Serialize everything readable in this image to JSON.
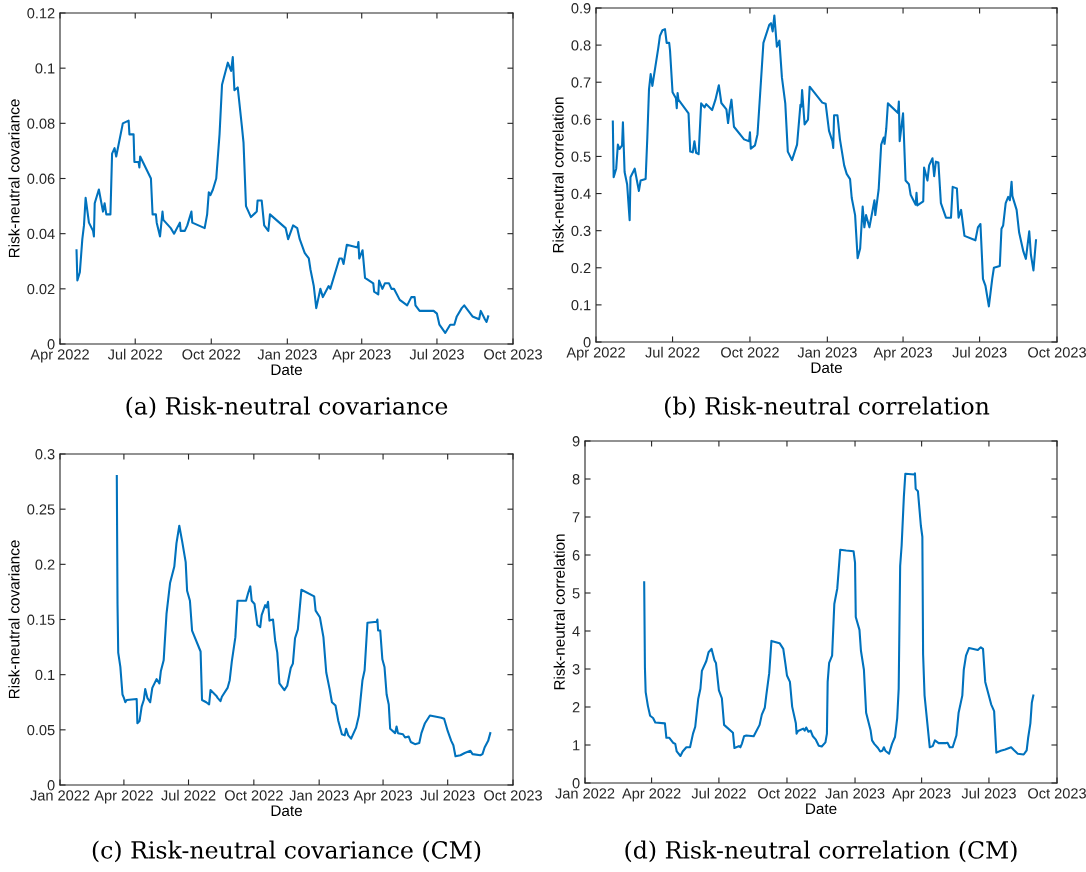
{
  "chart_data": [
    {
      "type": "line",
      "xlabel": "Date",
      "ylabel": "Risk-neutral covariance",
      "annotations": [
        "(a) Risk-neutral covariance"
      ],
      "xlim": [
        "2022-04-01",
        "2023-10-01"
      ],
      "ylim": [
        0,
        0.12
      ],
      "yticks": [
        0,
        0.02,
        0.04,
        0.06,
        0.08,
        0.1,
        0.12
      ],
      "xticks": [
        {
          "value": "2022-04-01",
          "label": "Apr 2022"
        },
        {
          "value": "2022-07-01",
          "label": "Jul 2022"
        },
        {
          "value": "2022-10-01",
          "label": "Oct 2022"
        },
        {
          "value": "2023-01-01",
          "label": "Jan 2023"
        },
        {
          "value": "2023-04-01",
          "label": "Apr 2023"
        },
        {
          "value": "2023-07-01",
          "label": "Jul 2023"
        },
        {
          "value": "2023-10-01",
          "label": "Oct 2023"
        }
      ],
      "x": [
        "2022-04-21",
        "2022-04-22",
        "2022-04-25",
        "2022-04-28",
        "2022-04-30",
        "2022-05-02",
        "2022-05-06",
        "2022-05-11",
        "2022-05-12",
        "2022-05-13",
        "2022-05-18",
        "2022-05-23",
        "2022-05-25",
        "2022-05-27",
        "2022-06-01",
        "2022-06-03",
        "2022-06-06",
        "2022-06-08",
        "2022-06-16",
        "2022-06-23",
        "2022-06-24",
        "2022-06-29",
        "2022-06-30",
        "2022-07-05",
        "2022-07-06",
        "2022-07-07",
        "2022-07-20",
        "2022-07-22",
        "2022-07-26",
        "2022-07-27",
        "2022-07-31",
        "2022-08-03",
        "2022-08-04",
        "2022-08-13",
        "2022-08-17",
        "2022-08-24",
        "2022-08-25",
        "2022-08-30",
        "2022-09-02",
        "2022-09-07",
        "2022-09-08",
        "2022-09-23",
        "2022-09-26",
        "2022-09-28",
        "2022-09-30",
        "2022-10-03",
        "2022-10-07",
        "2022-10-11",
        "2022-10-14",
        "2022-10-21",
        "2022-10-25",
        "2022-10-27",
        "2022-10-29",
        "2022-11-02",
        "2022-11-07",
        "2022-11-09",
        "2022-11-12",
        "2022-11-18",
        "2022-11-25",
        "2022-11-26",
        "2022-12-01",
        "2022-12-04",
        "2022-12-09",
        "2022-12-11",
        "2022-12-30",
        "2023-01-02",
        "2023-01-08",
        "2023-01-13",
        "2023-01-16",
        "2023-01-22",
        "2023-01-27",
        "2023-01-29",
        "2023-02-02",
        "2023-02-05",
        "2023-02-10",
        "2023-02-13",
        "2023-02-20",
        "2023-02-22",
        "2023-03-05",
        "2023-03-08",
        "2023-03-10",
        "2023-03-14",
        "2023-03-27",
        "2023-03-28",
        "2023-03-29",
        "2023-04-02",
        "2023-04-05",
        "2023-04-10",
        "2023-04-15",
        "2023-04-16",
        "2023-04-21",
        "2023-04-22",
        "2023-04-26",
        "2023-04-29",
        "2023-05-04",
        "2023-05-07",
        "2023-05-10",
        "2023-05-17",
        "2023-05-26",
        "2023-05-31",
        "2023-06-04",
        "2023-06-05",
        "2023-06-10",
        "2023-06-27",
        "2023-07-01",
        "2023-07-04",
        "2023-07-11",
        "2023-07-17",
        "2023-07-22",
        "2023-07-25",
        "2023-07-31",
        "2023-08-03",
        "2023-08-08",
        "2023-08-13",
        "2023-08-21",
        "2023-08-23",
        "2023-08-28",
        "2023-08-30",
        "2023-09-01"
      ],
      "series": [
        {
          "color": "#0072bd",
          "values": [
            0.034,
            0.023,
            0.026,
            0.038,
            0.043,
            0.053,
            0.044,
            0.041,
            0.039,
            0.051,
            0.056,
            0.048,
            0.051,
            0.047,
            0.047,
            0.069,
            0.071,
            0.068,
            0.08,
            0.081,
            0.076,
            0.076,
            0.066,
            0.066,
            0.064,
            0.068,
            0.06,
            0.047,
            0.047,
            0.044,
            0.039,
            0.048,
            0.045,
            0.042,
            0.04,
            0.044,
            0.041,
            0.041,
            0.043,
            0.048,
            0.044,
            0.042,
            0.047,
            0.055,
            0.054,
            0.056,
            0.06,
            0.076,
            0.094,
            0.102,
            0.099,
            0.104,
            0.092,
            0.093,
            0.079,
            0.073,
            0.05,
            0.046,
            0.048,
            0.052,
            0.052,
            0.043,
            0.041,
            0.047,
            0.042,
            0.038,
            0.043,
            0.042,
            0.038,
            0.033,
            0.031,
            0.027,
            0.021,
            0.013,
            0.02,
            0.017,
            0.021,
            0.02,
            0.031,
            0.031,
            0.029,
            0.036,
            0.035,
            0.037,
            0.031,
            0.034,
            0.024,
            0.023,
            0.022,
            0.019,
            0.018,
            0.023,
            0.02,
            0.022,
            0.022,
            0.02,
            0.02,
            0.016,
            0.014,
            0.017,
            0.017,
            0.014,
            0.012,
            0.012,
            0.011,
            0.007,
            0.004,
            0.007,
            0.007,
            0.01,
            0.013,
            0.014,
            0.012,
            0.01,
            0.009,
            0.012,
            0.009,
            0.008,
            0.01
          ]
        }
      ]
    },
    {
      "type": "line",
      "xlabel": "Date",
      "ylabel": "Risk-neutral correlation",
      "annotations": [
        "(b) Risk-neutral correlation"
      ],
      "xlim": [
        "2022-04-01",
        "2023-10-01"
      ],
      "ylim": [
        0,
        0.9
      ],
      "yticks": [
        0,
        0.1,
        0.2,
        0.3,
        0.4,
        0.5,
        0.6,
        0.7,
        0.8,
        0.9
      ],
      "xticks": [
        {
          "value": "2022-04-01",
          "label": "Apr 2022"
        },
        {
          "value": "2022-07-01",
          "label": "Jul 2022"
        },
        {
          "value": "2022-10-01",
          "label": "Oct 2022"
        },
        {
          "value": "2023-01-01",
          "label": "Jan 2023"
        },
        {
          "value": "2023-04-01",
          "label": "Apr 2023"
        },
        {
          "value": "2023-07-01",
          "label": "Jul 2023"
        },
        {
          "value": "2023-10-01",
          "label": "Oct 2023"
        }
      ],
      "x": [
        "2022-04-21",
        "2022-04-22",
        "2022-04-25",
        "2022-04-27",
        "2022-04-29",
        "2022-05-02",
        "2022-05-03",
        "2022-05-05",
        "2022-05-08",
        "2022-05-11",
        "2022-05-12",
        "2022-05-17",
        "2022-05-22",
        "2022-05-24",
        "2022-05-30",
        "2022-06-01",
        "2022-06-03",
        "2022-06-05",
        "2022-06-07",
        "2022-06-14",
        "2022-06-16",
        "2022-06-19",
        "2022-06-22",
        "2022-06-24",
        "2022-06-27",
        "2022-06-28",
        "2022-07-01",
        "2022-07-05",
        "2022-07-06",
        "2022-07-07",
        "2022-07-08",
        "2022-07-20",
        "2022-07-22",
        "2022-07-25",
        "2022-07-27",
        "2022-07-29",
        "2022-08-01",
        "2022-08-04",
        "2022-08-08",
        "2022-08-10",
        "2022-08-17",
        "2022-08-21",
        "2022-08-25",
        "2022-08-28",
        "2022-09-03",
        "2022-09-05",
        "2022-09-07",
        "2022-09-09",
        "2022-09-12",
        "2022-09-24",
        "2022-09-30",
        "2022-10-01",
        "2022-10-02",
        "2022-10-07",
        "2022-10-10",
        "2022-10-12",
        "2022-10-14",
        "2022-10-17",
        "2022-10-24",
        "2022-10-26",
        "2022-10-28",
        "2022-10-30",
        "2022-10-31",
        "2022-11-02",
        "2022-11-05",
        "2022-11-08",
        "2022-11-12",
        "2022-11-15",
        "2022-11-20",
        "2022-11-26",
        "2022-11-30",
        "2022-12-01",
        "2022-12-02",
        "2022-12-05",
        "2022-12-09",
        "2022-12-11",
        "2022-12-26",
        "2022-12-30",
        "2023-01-03",
        "2023-01-07",
        "2023-01-08",
        "2023-01-09",
        "2023-01-13",
        "2023-01-16",
        "2023-01-21",
        "2023-01-24",
        "2023-01-28",
        "2023-01-30",
        "2023-02-03",
        "2023-02-06",
        "2023-02-09",
        "2023-02-12",
        "2023-02-14",
        "2023-02-16",
        "2023-02-20",
        "2023-02-26",
        "2023-02-27",
        "2023-03-03",
        "2023-03-06",
        "2023-03-09",
        "2023-03-10",
        "2023-03-12",
        "2023-03-14",
        "2023-03-26",
        "2023-03-27",
        "2023-03-28",
        "2023-04-01",
        "2023-04-04",
        "2023-04-08",
        "2023-04-10",
        "2023-04-16",
        "2023-04-17",
        "2023-04-18",
        "2023-04-25",
        "2023-04-26",
        "2023-04-30",
        "2023-05-02",
        "2023-05-06",
        "2023-05-08",
        "2023-05-10",
        "2023-05-13",
        "2023-05-16",
        "2023-05-22",
        "2023-05-28",
        "2023-05-30",
        "2023-06-04",
        "2023-06-06",
        "2023-06-09",
        "2023-06-13",
        "2023-06-26",
        "2023-06-29",
        "2023-07-02",
        "2023-07-05",
        "2023-07-08",
        "2023-07-12",
        "2023-07-16",
        "2023-07-18",
        "2023-07-25",
        "2023-07-27",
        "2023-07-29",
        "2023-08-01",
        "2023-08-04",
        "2023-08-06",
        "2023-08-08",
        "2023-08-09",
        "2023-08-14",
        "2023-08-17",
        "2023-08-22",
        "2023-08-25",
        "2023-08-29",
        "2023-08-31",
        "2023-09-03",
        "2023-09-06"
      ],
      "series": [
        {
          "color": "#0072bd",
          "values": [
            0.594,
            0.444,
            0.467,
            0.532,
            0.52,
            0.53,
            0.592,
            0.458,
            0.425,
            0.328,
            0.444,
            0.467,
            0.407,
            0.435,
            0.439,
            0.551,
            0.681,
            0.722,
            0.69,
            0.792,
            0.825,
            0.84,
            0.843,
            0.806,
            0.806,
            0.785,
            0.673,
            0.657,
            0.63,
            0.671,
            0.653,
            0.616,
            0.513,
            0.511,
            0.541,
            0.51,
            0.506,
            0.643,
            0.632,
            0.641,
            0.625,
            0.653,
            0.692,
            0.644,
            0.627,
            0.59,
            0.627,
            0.653,
            0.58,
            0.546,
            0.541,
            0.565,
            0.521,
            0.53,
            0.56,
            0.63,
            0.7,
            0.806,
            0.855,
            0.859,
            0.837,
            0.88,
            0.852,
            0.796,
            0.812,
            0.713,
            0.643,
            0.513,
            0.49,
            0.532,
            0.639,
            0.634,
            0.679,
            0.586,
            0.599,
            0.688,
            0.645,
            0.642,
            0.569,
            0.541,
            0.523,
            0.611,
            0.611,
            0.546,
            0.476,
            0.453,
            0.439,
            0.388,
            0.342,
            0.226,
            0.252,
            0.365,
            0.309,
            0.342,
            0.309,
            0.382,
            0.342,
            0.411,
            0.532,
            0.551,
            0.534,
            0.574,
            0.643,
            0.617,
            0.648,
            0.541,
            0.616,
            0.435,
            0.425,
            0.397,
            0.37,
            0.402,
            0.368,
            0.379,
            0.47,
            0.435,
            0.476,
            0.495,
            0.447,
            0.486,
            0.484,
            0.374,
            0.335,
            0.335,
            0.418,
            0.414,
            0.335,
            0.356,
            0.286,
            0.274,
            0.309,
            0.318,
            0.17,
            0.151,
            0.096,
            0.17,
            0.2,
            0.205,
            0.305,
            0.314,
            0.374,
            0.391,
            0.382,
            0.432,
            0.393,
            0.356,
            0.295,
            0.244,
            0.224,
            0.298,
            0.235,
            0.193,
            0.274
          ]
        }
      ]
    },
    {
      "type": "line",
      "xlabel": "Date",
      "ylabel": "Risk-neutral covariance",
      "annotations": [
        "(c) Risk-neutral covariance (CM)"
      ],
      "xlim": [
        "2022-01-01",
        "2023-10-01"
      ],
      "ylim": [
        0,
        0.3
      ],
      "yticks": [
        0,
        0.05,
        0.1,
        0.15,
        0.2,
        0.25,
        0.3
      ],
      "xticks": [
        {
          "value": "2022-01-01",
          "label": "Jan 2022"
        },
        {
          "value": "2022-04-01",
          "label": "Apr 2022"
        },
        {
          "value": "2022-07-01",
          "label": "Jul 2022"
        },
        {
          "value": "2022-10-01",
          "label": "Oct 2022"
        },
        {
          "value": "2023-01-01",
          "label": "Jan 2023"
        },
        {
          "value": "2023-04-01",
          "label": "Apr 2023"
        },
        {
          "value": "2023-07-01",
          "label": "Jul 2023"
        },
        {
          "value": "2023-10-01",
          "label": "Oct 2023"
        }
      ],
      "x": [
        "2022-03-22",
        "2022-03-23",
        "2022-03-24",
        "2022-03-27",
        "2022-03-30",
        "2022-04-01",
        "2022-04-03",
        "2022-04-05",
        "2022-04-19",
        "2022-04-20",
        "2022-04-23",
        "2022-04-26",
        "2022-04-29",
        "2022-05-01",
        "2022-05-04",
        "2022-05-08",
        "2022-05-11",
        "2022-05-17",
        "2022-05-21",
        "2022-05-23",
        "2022-05-27",
        "2022-05-31",
        "2022-06-05",
        "2022-06-11",
        "2022-06-14",
        "2022-06-18",
        "2022-06-22",
        "2022-06-27",
        "2022-06-29",
        "2022-07-03",
        "2022-07-06",
        "2022-07-18",
        "2022-07-20",
        "2022-07-26",
        "2022-07-30",
        "2022-08-01",
        "2022-08-09",
        "2022-08-11",
        "2022-08-15",
        "2022-08-17",
        "2022-08-25",
        "2022-08-28",
        "2022-08-31",
        "2022-09-05",
        "2022-09-08",
        "2022-09-20",
        "2022-09-23",
        "2022-09-26",
        "2022-09-28",
        "2022-10-02",
        "2022-10-06",
        "2022-10-10",
        "2022-10-12",
        "2022-10-17",
        "2022-10-19",
        "2022-10-21",
        "2022-10-23",
        "2022-10-28",
        "2022-10-31",
        "2022-11-03",
        "2022-11-06",
        "2022-11-13",
        "2022-11-17",
        "2022-11-22",
        "2022-11-25",
        "2022-11-28",
        "2022-12-02",
        "2022-12-07",
        "2022-12-25",
        "2022-12-27",
        "2023-01-02",
        "2023-01-07",
        "2023-01-11",
        "2023-01-16",
        "2023-01-19",
        "2023-01-24",
        "2023-01-28",
        "2023-02-02",
        "2023-02-06",
        "2023-02-08",
        "2023-02-11",
        "2023-02-15",
        "2023-02-22",
        "2023-02-26",
        "2023-03-03",
        "2023-03-06",
        "2023-03-10",
        "2023-03-23",
        "2023-03-24",
        "2023-03-25",
        "2023-03-28",
        "2023-03-31",
        "2023-04-03",
        "2023-04-06",
        "2023-04-09",
        "2023-04-11",
        "2023-04-18",
        "2023-04-20",
        "2023-04-22",
        "2023-04-29",
        "2023-05-02",
        "2023-05-07",
        "2023-05-10",
        "2023-05-16",
        "2023-05-22",
        "2023-05-25",
        "2023-05-30",
        "2023-06-06",
        "2023-06-22",
        "2023-06-26",
        "2023-07-01",
        "2023-07-06",
        "2023-07-09",
        "2023-07-12",
        "2023-07-19",
        "2023-07-25",
        "2023-08-02",
        "2023-08-05",
        "2023-08-16",
        "2023-08-19",
        "2023-08-22",
        "2023-08-27",
        "2023-08-30"
      ],
      "series": [
        {
          "color": "#0072bd",
          "values": [
            0.28,
            0.164,
            0.12,
            0.107,
            0.082,
            0.079,
            0.075,
            0.077,
            0.078,
            0.056,
            0.058,
            0.071,
            0.077,
            0.087,
            0.079,
            0.075,
            0.088,
            0.096,
            0.092,
            0.103,
            0.113,
            0.155,
            0.183,
            0.198,
            0.219,
            0.235,
            0.221,
            0.202,
            0.176,
            0.167,
            0.14,
            0.121,
            0.077,
            0.075,
            0.073,
            0.086,
            0.081,
            0.079,
            0.076,
            0.08,
            0.088,
            0.095,
            0.112,
            0.134,
            0.167,
            0.167,
            0.174,
            0.18,
            0.167,
            0.164,
            0.145,
            0.143,
            0.154,
            0.163,
            0.161,
            0.166,
            0.149,
            0.15,
            0.131,
            0.12,
            0.092,
            0.086,
            0.09,
            0.106,
            0.11,
            0.133,
            0.141,
            0.177,
            0.171,
            0.158,
            0.152,
            0.134,
            0.102,
            0.086,
            0.075,
            0.072,
            0.058,
            0.046,
            0.045,
            0.051,
            0.045,
            0.042,
            0.052,
            0.063,
            0.095,
            0.104,
            0.147,
            0.148,
            0.15,
            0.14,
            0.14,
            0.114,
            0.107,
            0.082,
            0.073,
            0.051,
            0.047,
            0.053,
            0.047,
            0.046,
            0.043,
            0.044,
            0.039,
            0.037,
            0.038,
            0.047,
            0.056,
            0.063,
            0.061,
            0.06,
            0.049,
            0.04,
            0.036,
            0.026,
            0.027,
            0.029,
            0.031,
            0.028,
            0.027,
            0.028,
            0.034,
            0.04,
            0.047
          ]
        }
      ]
    },
    {
      "type": "line",
      "xlabel": "Date",
      "ylabel": "Risk-neutral correlation",
      "annotations": [
        "(d) Risk-neutral correlation (CM)"
      ],
      "xlim": [
        "2022-01-01",
        "2023-10-01"
      ],
      "ylim": [
        0,
        9
      ],
      "yticks": [
        0,
        1,
        2,
        3,
        4,
        5,
        6,
        7,
        8,
        9
      ],
      "xticks": [
        {
          "value": "2022-01-01",
          "label": "Jan 2022"
        },
        {
          "value": "2022-04-01",
          "label": "Apr 2022"
        },
        {
          "value": "2022-07-01",
          "label": "Jul 2022"
        },
        {
          "value": "2022-10-01",
          "label": "Oct 2022"
        },
        {
          "value": "2023-01-01",
          "label": "Jan 2023"
        },
        {
          "value": "2023-04-01",
          "label": "Apr 2023"
        },
        {
          "value": "2023-07-01",
          "label": "Jul 2023"
        },
        {
          "value": "2023-10-01",
          "label": "Oct 2023"
        }
      ],
      "x": [
        "2022-03-22",
        "2022-03-23",
        "2022-03-24",
        "2022-03-27",
        "2022-03-30",
        "2022-04-03",
        "2022-04-06",
        "2022-04-19",
        "2022-04-21",
        "2022-04-25",
        "2022-04-30",
        "2022-05-03",
        "2022-05-05",
        "2022-05-10",
        "2022-05-13",
        "2022-05-18",
        "2022-05-23",
        "2022-05-27",
        "2022-05-30",
        "2022-06-03",
        "2022-06-06",
        "2022-06-08",
        "2022-06-14",
        "2022-06-17",
        "2022-06-21",
        "2022-06-25",
        "2022-06-27",
        "2022-07-01",
        "2022-07-05",
        "2022-07-08",
        "2022-07-20",
        "2022-07-22",
        "2022-07-28",
        "2022-07-30",
        "2022-08-01",
        "2022-08-04",
        "2022-08-07",
        "2022-08-17",
        "2022-08-25",
        "2022-08-28",
        "2022-09-01",
        "2022-09-03",
        "2022-09-07",
        "2022-09-10",
        "2022-09-21",
        "2022-09-26",
        "2022-09-29",
        "2022-10-01",
        "2022-10-05",
        "2022-10-08",
        "2022-10-13",
        "2022-10-14",
        "2022-10-16",
        "2022-10-23",
        "2022-10-25",
        "2022-10-27",
        "2022-10-30",
        "2022-11-02",
        "2022-11-05",
        "2022-11-09",
        "2022-11-13",
        "2022-11-17",
        "2022-11-22",
        "2022-11-24",
        "2022-11-25",
        "2022-11-27",
        "2022-12-01",
        "2022-12-04",
        "2022-12-08",
        "2022-12-12",
        "2022-12-20",
        "2022-12-30",
        "2023-01-01",
        "2023-01-02",
        "2023-01-07",
        "2023-01-09",
        "2023-01-13",
        "2023-01-16",
        "2023-01-22",
        "2023-01-24",
        "2023-01-27",
        "2023-02-01",
        "2023-02-04",
        "2023-02-07",
        "2023-02-09",
        "2023-02-11",
        "2023-02-16",
        "2023-02-20",
        "2023-02-24",
        "2023-02-27",
        "2023-03-01",
        "2023-03-03",
        "2023-03-05",
        "2023-03-08",
        "2023-03-10",
        "2023-03-22",
        "2023-03-23",
        "2023-03-24",
        "2023-03-27",
        "2023-03-31",
        "2023-04-02",
        "2023-04-03",
        "2023-04-05",
        "2023-04-12",
        "2023-04-16",
        "2023-04-19",
        "2023-04-24",
        "2023-05-04",
        "2023-05-06",
        "2023-05-09",
        "2023-05-13",
        "2023-05-18",
        "2023-05-21",
        "2023-05-26",
        "2023-05-28",
        "2023-05-31",
        "2023-06-04",
        "2023-06-16",
        "2023-06-20",
        "2023-06-23",
        "2023-06-26",
        "2023-07-04",
        "2023-07-08",
        "2023-07-11",
        "2023-07-17",
        "2023-07-23",
        "2023-07-31",
        "2023-08-04",
        "2023-08-09",
        "2023-08-17",
        "2023-08-21",
        "2023-08-23",
        "2023-08-26",
        "2023-08-28",
        "2023-08-30"
      ],
      "series": [
        {
          "color": "#0072bd",
          "values": [
            5.28,
            3.03,
            2.39,
            2.03,
            1.77,
            1.71,
            1.59,
            1.57,
            1.19,
            1.19,
            1.06,
            1.03,
            0.83,
            0.71,
            0.83,
            0.94,
            0.94,
            1.3,
            1.48,
            2.21,
            2.48,
            2.95,
            3.21,
            3.44,
            3.53,
            3.23,
            3.16,
            2.44,
            2.23,
            1.53,
            1.32,
            0.92,
            0.97,
            0.94,
            1.03,
            1.23,
            1.25,
            1.23,
            1.53,
            1.8,
            1.98,
            2.3,
            2.89,
            3.74,
            3.68,
            3.53,
            3.12,
            2.83,
            2.66,
            2.01,
            1.57,
            1.3,
            1.37,
            1.43,
            1.38,
            1.46,
            1.35,
            1.38,
            1.23,
            1.14,
            0.98,
            0.96,
            1.07,
            1.3,
            2.66,
            3.16,
            3.35,
            4.71,
            5.12,
            6.14,
            6.12,
            6.1,
            5.8,
            4.37,
            4.03,
            3.48,
            2.98,
            1.85,
            1.39,
            1.12,
            1.03,
            0.92,
            0.83,
            0.85,
            0.94,
            0.85,
            0.77,
            1.03,
            1.21,
            1.71,
            2.48,
            5.71,
            6.25,
            7.53,
            8.14,
            8.12,
            8.15,
            7.74,
            7.68,
            6.77,
            6.48,
            3.39,
            2.3,
            0.94,
            0.97,
            1.12,
            1.05,
            1.05,
            1.06,
            0.94,
            0.94,
            1.25,
            1.85,
            2.3,
            2.98,
            3.35,
            3.55,
            3.5,
            3.57,
            3.53,
            2.66,
            2.07,
            1.89,
            0.8,
            0.85,
            0.88,
            0.94,
            0.86,
            0.77,
            0.75,
            0.86,
            1.19,
            1.57,
            2.12,
            2.3
          ]
        }
      ]
    }
  ]
}
